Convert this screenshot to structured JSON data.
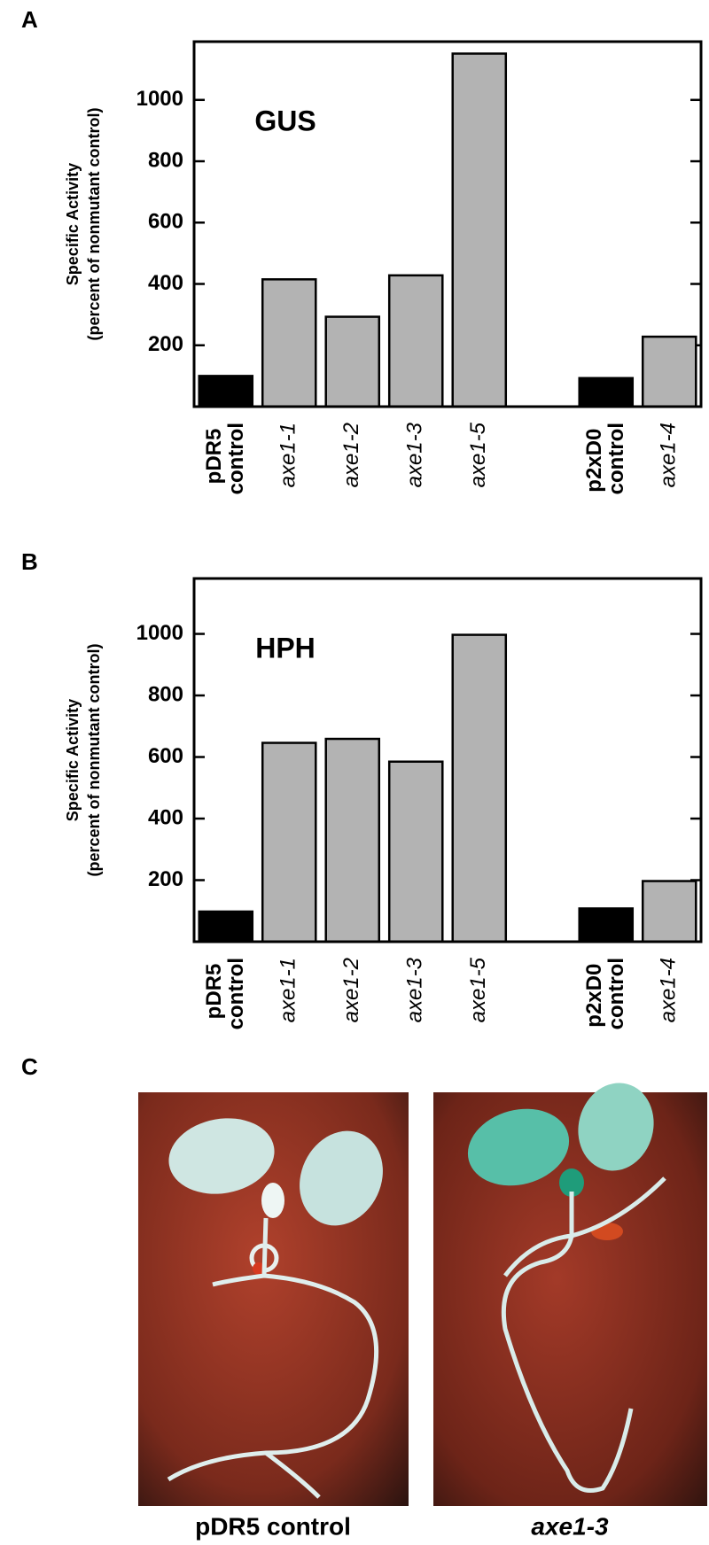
{
  "chart_data": [
    {
      "type": "bar",
      "panel": "A",
      "title": "GUS",
      "ylabel": [
        "Specific Activity",
        "(percent of nonmutant control)"
      ],
      "categories": [
        "pDR5 control",
        "axe1-1",
        "axe1-2",
        "axe1-3",
        "axe1-5",
        null,
        "p2xD0 control",
        "axe1-4"
      ],
      "italic": [
        false,
        true,
        true,
        true,
        true,
        false,
        false,
        true
      ],
      "values": [
        100,
        415,
        293,
        428,
        1151,
        null,
        93,
        228
      ],
      "colors": [
        "#000000",
        "#b3b3b3",
        "#b3b3b3",
        "#b3b3b3",
        "#b3b3b3",
        null,
        "#000000",
        "#b3b3b3"
      ],
      "ylim": [
        0,
        1190
      ],
      "yticks": [
        200,
        400,
        600,
        800,
        1000
      ],
      "grid": false
    },
    {
      "type": "bar",
      "panel": "B",
      "title": "HPH",
      "ylabel": [
        "Specific Activity",
        "(percent of nonmutant control)"
      ],
      "categories": [
        "pDR5 control",
        "axe1-1",
        "axe1-2",
        "axe1-3",
        "axe1-5",
        null,
        "p2xD0 control",
        "axe1-4"
      ],
      "italic": [
        false,
        true,
        true,
        true,
        true,
        false,
        false,
        true
      ],
      "values": [
        98,
        646,
        659,
        585,
        997,
        null,
        108,
        197
      ],
      "colors": [
        "#000000",
        "#b3b3b3",
        "#b3b3b3",
        "#b3b3b3",
        "#b3b3b3",
        null,
        "#000000",
        "#b3b3b3"
      ],
      "ylim": [
        0,
        1180
      ],
      "yticks": [
        200,
        400,
        600,
        800,
        1000
      ],
      "grid": false
    }
  ],
  "panel_c": {
    "label": "C",
    "captions": [
      "pDR5 control",
      "axe1-3"
    ]
  }
}
